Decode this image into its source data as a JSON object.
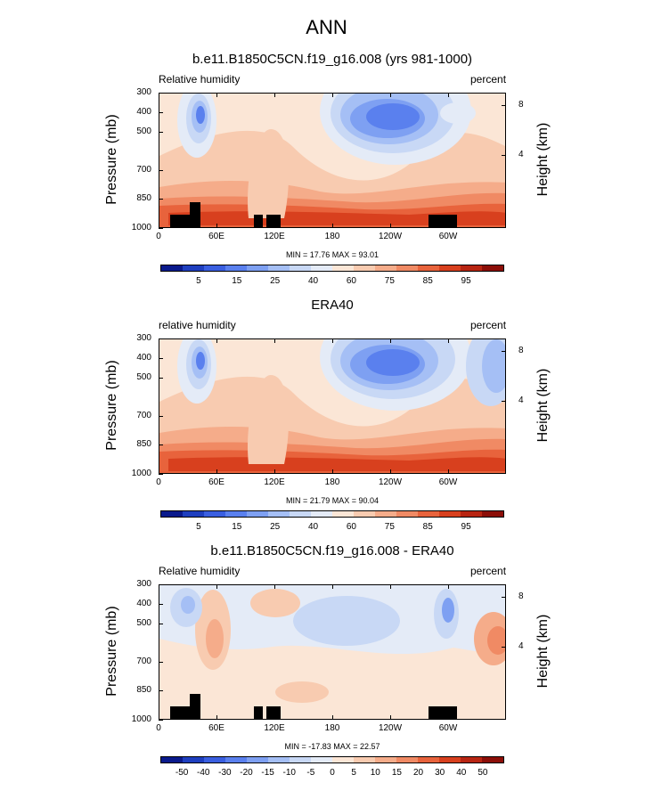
{
  "title": "ANN",
  "panels": [
    {
      "title": "b.e11.B1850C5CN.f19_g16.008 (yrs 981-1000)",
      "left_label": "Relative humidity",
      "right_label": "percent",
      "minmax": "MIN = 17.76  MAX = 93.01",
      "kind": "abs"
    },
    {
      "title": "ERA40",
      "left_label": "relative humidity",
      "right_label": "percent",
      "minmax": "MIN = 21.79  MAX = 90.04",
      "kind": "obs"
    },
    {
      "title": "b.e11.B1850C5CN.f19_g16.008 - ERA40",
      "left_label": "Relative humidity",
      "right_label": "percent",
      "minmax": "MIN = -17.83  MAX = 22.57",
      "kind": "diff"
    }
  ],
  "axes": {
    "ylabel": "Pressure (mb)",
    "ylabel_right": "Height (km)",
    "pressure_ticks": [
      "300",
      "400",
      "500",
      "700",
      "850",
      "1000"
    ],
    "height_ticks": [
      "8",
      "4"
    ],
    "x_ticks": [
      "0",
      "60E",
      "120E",
      "180",
      "120W",
      "60W"
    ]
  },
  "colorbar_abs": {
    "labels": [
      "5",
      "15",
      "25",
      "40",
      "60",
      "75",
      "85",
      "95"
    ],
    "colors": [
      "#0a1a8c",
      "#1f3fbf",
      "#3a5fe0",
      "#5a80ee",
      "#7ea0f2",
      "#a5bff5",
      "#c8d8f5",
      "#e4ebf7",
      "#fbe6d6",
      "#f8cbb0",
      "#f5ac8a",
      "#f08a64",
      "#e8633c",
      "#d8401e",
      "#b82512",
      "#8c0e08"
    ]
  },
  "colorbar_diff": {
    "labels": [
      "-50",
      "-40",
      "-30",
      "-20",
      "-15",
      "-10",
      "-5",
      "0",
      "5",
      "10",
      "15",
      "20",
      "30",
      "40",
      "50"
    ],
    "colors": [
      "#0a1a8c",
      "#1f3fbf",
      "#3a5fe0",
      "#5a80ee",
      "#7ea0f2",
      "#a5bff5",
      "#c8d8f5",
      "#e4ebf7",
      "#fbe6d6",
      "#f8cbb0",
      "#f5ac8a",
      "#f08a64",
      "#e8633c",
      "#d8401e",
      "#b82512",
      "#8c0e08"
    ]
  },
  "chart_data": [
    {
      "type": "heatmap",
      "title": "b.e11.B1850C5CN.f19_g16.008 (yrs 981-1000)",
      "xlabel": "",
      "ylabel": "Pressure (mb)",
      "field": "Relative humidity",
      "units": "percent",
      "x_range": [
        0,
        360
      ],
      "y_range": [
        1000,
        300
      ],
      "min": 17.76,
      "max": 93.01,
      "levels": [
        5,
        10,
        15,
        20,
        25,
        30,
        40,
        50,
        60,
        70,
        75,
        80,
        85,
        90,
        95
      ]
    },
    {
      "type": "heatmap",
      "title": "ERA40",
      "xlabel": "",
      "ylabel": "Pressure (mb)",
      "field": "relative humidity",
      "units": "percent",
      "x_range": [
        0,
        360
      ],
      "y_range": [
        1000,
        300
      ],
      "min": 21.79,
      "max": 90.04,
      "levels": [
        5,
        10,
        15,
        20,
        25,
        30,
        40,
        50,
        60,
        70,
        75,
        80,
        85,
        90,
        95
      ]
    },
    {
      "type": "heatmap",
      "title": "b.e11.B1850C5CN.f19_g16.008 - ERA40",
      "xlabel": "",
      "ylabel": "Pressure (mb)",
      "field": "Relative humidity",
      "units": "percent",
      "x_range": [
        0,
        360
      ],
      "y_range": [
        1000,
        300
      ],
      "min": -17.83,
      "max": 22.57,
      "levels": [
        -50,
        -40,
        -30,
        -20,
        -15,
        -10,
        -5,
        0,
        5,
        10,
        15,
        20,
        30,
        40,
        50
      ]
    }
  ]
}
